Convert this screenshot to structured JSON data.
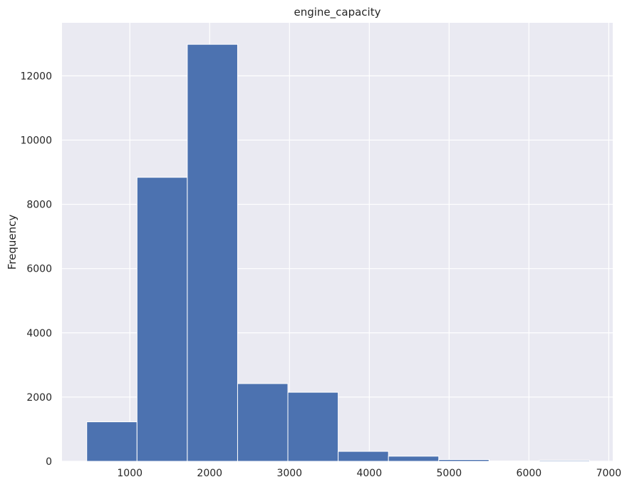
{
  "chart_data": {
    "type": "bar",
    "title": "engine_capacity",
    "xlabel": "",
    "ylabel": "Frequency",
    "xlim": [
      150,
      7050
    ],
    "ylim": [
      0,
      13650
    ],
    "x_ticks": [
      1000,
      2000,
      3000,
      4000,
      5000,
      6000,
      7000
    ],
    "y_ticks": [
      0,
      2000,
      4000,
      6000,
      8000,
      10000,
      12000
    ],
    "grid": true,
    "bins": [
      {
        "start": 460,
        "end": 1090,
        "value": 1230
      },
      {
        "start": 1090,
        "end": 1720,
        "value": 8840
      },
      {
        "start": 1720,
        "end": 2350,
        "value": 12980
      },
      {
        "start": 2350,
        "end": 2980,
        "value": 2420
      },
      {
        "start": 2980,
        "end": 3610,
        "value": 2150
      },
      {
        "start": 3610,
        "end": 4240,
        "value": 310
      },
      {
        "start": 4240,
        "end": 4870,
        "value": 160
      },
      {
        "start": 4870,
        "end": 5500,
        "value": 55
      },
      {
        "start": 5500,
        "end": 6130,
        "value": 10
      },
      {
        "start": 6130,
        "end": 6760,
        "value": 30
      }
    ],
    "colors": {
      "bar": "#4c72b0",
      "background": "#eaeaf2",
      "grid": "#ffffff"
    }
  }
}
